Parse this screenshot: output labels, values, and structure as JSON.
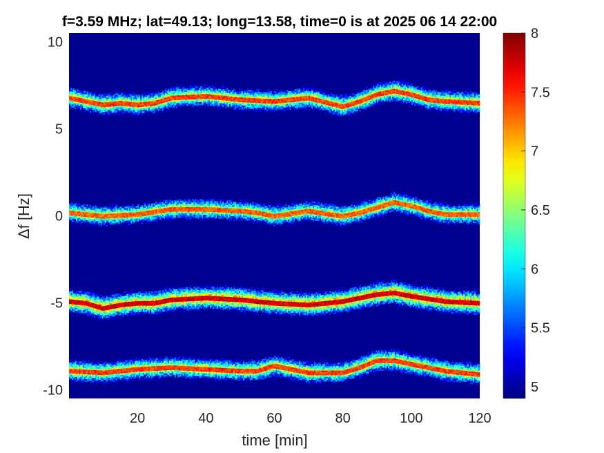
{
  "chart_data": {
    "type": "heatmap",
    "title": "f=3.59 MHz;  lat=49.13; long=13.58, time=0 is at 2025 06 14 22:00",
    "xlabel": "time [min]",
    "ylabel": "Δf [Hz]",
    "xlim": [
      0,
      120
    ],
    "ylim": [
      -10.5,
      10.5
    ],
    "x_ticks": [
      20,
      40,
      60,
      80,
      100,
      120
    ],
    "y_ticks": [
      -10,
      -5,
      0,
      5,
      10
    ],
    "colorbar": {
      "range": [
        4.9,
        8
      ],
      "ticks": [
        5,
        5.5,
        6,
        6.5,
        7,
        7.5,
        8
      ],
      "colormap": "jet"
    },
    "background_value": 4.95,
    "grid": false,
    "traces": [
      {
        "points": [
          [
            0,
            6.8
          ],
          [
            5,
            6.6
          ],
          [
            10,
            6.4
          ],
          [
            15,
            6.5
          ],
          [
            20,
            6.4
          ],
          [
            25,
            6.5
          ],
          [
            30,
            6.8
          ],
          [
            40,
            6.9
          ],
          [
            50,
            6.7
          ],
          [
            60,
            6.6
          ],
          [
            70,
            6.8
          ],
          [
            80,
            6.3
          ],
          [
            85,
            6.6
          ],
          [
            90,
            7.0
          ],
          [
            95,
            7.2
          ],
          [
            100,
            7.0
          ],
          [
            105,
            6.7
          ],
          [
            110,
            6.6
          ],
          [
            120,
            6.5
          ]
        ],
        "peak": 7.6
      },
      {
        "points": [
          [
            0,
            0.2
          ],
          [
            10,
            0.0
          ],
          [
            20,
            0.1
          ],
          [
            30,
            0.4
          ],
          [
            40,
            0.4
          ],
          [
            50,
            0.3
          ],
          [
            55,
            0.2
          ],
          [
            60,
            0.0
          ],
          [
            70,
            0.3
          ],
          [
            80,
            0.0
          ],
          [
            85,
            0.2
          ],
          [
            90,
            0.5
          ],
          [
            95,
            0.8
          ],
          [
            100,
            0.6
          ],
          [
            105,
            0.3
          ],
          [
            110,
            0.1
          ],
          [
            120,
            0.1
          ]
        ],
        "peak": 7.5
      },
      {
        "points": [
          [
            0,
            -4.9
          ],
          [
            5,
            -5.0
          ],
          [
            10,
            -5.3
          ],
          [
            15,
            -5.1
          ],
          [
            20,
            -5.0
          ],
          [
            25,
            -5.0
          ],
          [
            30,
            -4.8
          ],
          [
            40,
            -4.7
          ],
          [
            50,
            -4.8
          ],
          [
            60,
            -5.0
          ],
          [
            70,
            -5.1
          ],
          [
            80,
            -4.9
          ],
          [
            85,
            -4.7
          ],
          [
            90,
            -4.5
          ],
          [
            95,
            -4.4
          ],
          [
            100,
            -4.6
          ],
          [
            110,
            -4.9
          ],
          [
            120,
            -5.0
          ]
        ],
        "peak": 7.9
      },
      {
        "points": [
          [
            0,
            -8.9
          ],
          [
            10,
            -9.0
          ],
          [
            20,
            -8.8
          ],
          [
            30,
            -8.7
          ],
          [
            40,
            -8.8
          ],
          [
            50,
            -8.9
          ],
          [
            55,
            -8.9
          ],
          [
            60,
            -8.6
          ],
          [
            65,
            -8.8
          ],
          [
            70,
            -9.0
          ],
          [
            80,
            -9.0
          ],
          [
            85,
            -8.7
          ],
          [
            90,
            -8.3
          ],
          [
            95,
            -8.3
          ],
          [
            100,
            -8.5
          ],
          [
            110,
            -8.9
          ],
          [
            120,
            -9.1
          ]
        ],
        "peak": 7.6
      }
    ]
  }
}
